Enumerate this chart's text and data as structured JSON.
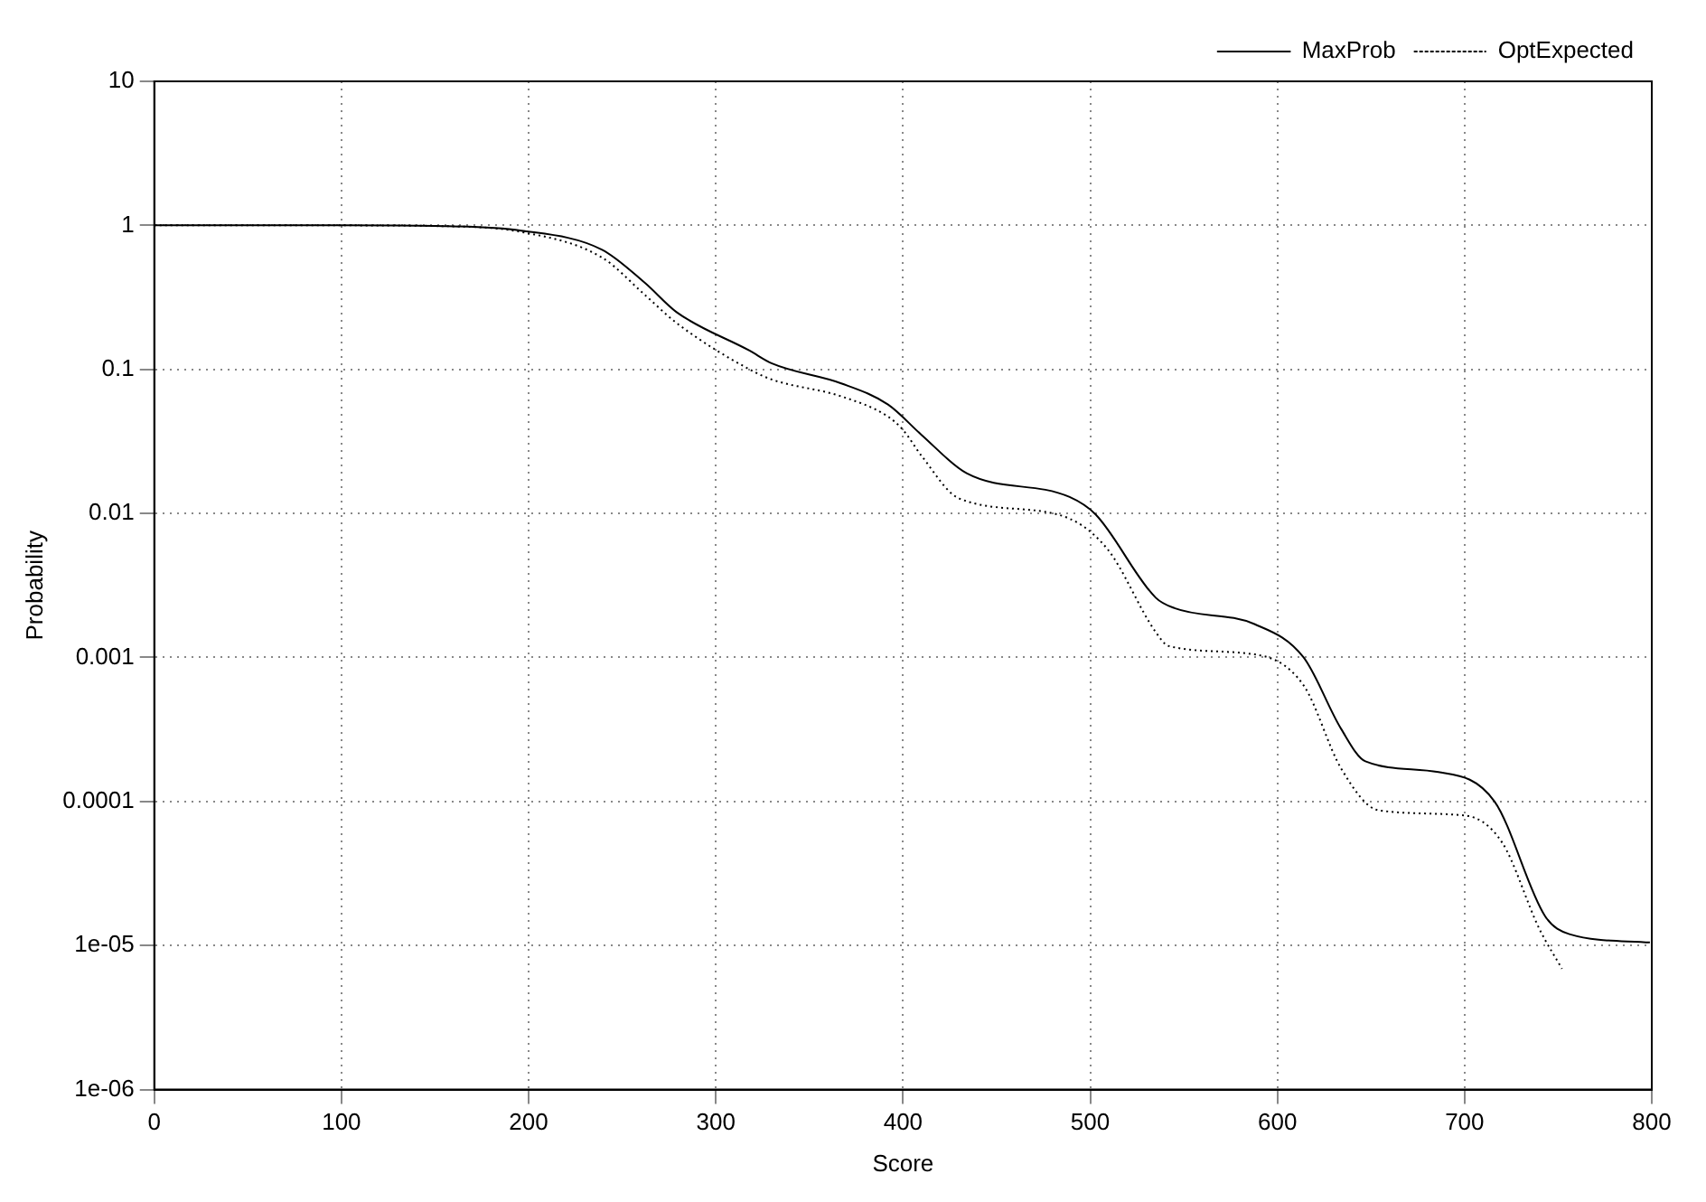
{
  "chart_data": {
    "type": "line",
    "xlabel": "Score",
    "ylabel": "Probability",
    "log": "y",
    "grid": true,
    "legend": "top right",
    "xlim": [
      0,
      800
    ],
    "xticks": [
      0,
      100,
      200,
      300,
      400,
      500,
      600,
      700,
      800
    ],
    "ylim": [
      1e-06,
      10
    ],
    "yticks": [
      {
        "value": 1e-06,
        "label": "1e-06"
      },
      {
        "value": 1e-05,
        "label": "1e-05"
      },
      {
        "value": 0.0001,
        "label": "0.0001"
      },
      {
        "value": 0.001,
        "label": "0.001"
      },
      {
        "value": 0.01,
        "label": "0.01"
      },
      {
        "value": 0.1,
        "label": "0.1"
      },
      {
        "value": 1,
        "label": "1"
      },
      {
        "value": 10,
        "label": "10"
      }
    ],
    "series": [
      {
        "name": "MaxProb",
        "color": "#000000",
        "line_style": "solid",
        "x": [
          0,
          100,
          150,
          196,
          239,
          262,
          279,
          318,
          330,
          367,
          392,
          410,
          434,
          489,
          503,
          535,
          545,
          588,
          614,
          634,
          647,
          686,
          716,
          743,
          756,
          799
        ],
        "values": [
          1,
          1,
          0.99,
          0.92,
          0.68,
          0.4,
          0.25,
          0.135,
          0.11,
          0.08,
          0.057,
          0.035,
          0.019,
          0.013,
          0.0098,
          0.0026,
          0.0022,
          0.0017,
          0.001,
          0.00032,
          0.00019,
          0.00016,
          0.0001,
          1.6e-05,
          1.2e-05,
          1.05e-05
        ]
      },
      {
        "name": "OptExpected",
        "color": "#000000",
        "line_style": "dotted",
        "x": [
          0,
          100,
          150,
          196,
          239,
          262,
          279,
          318,
          330,
          367,
          392,
          400,
          410,
          430,
          483,
          509,
          535,
          542,
          588,
          614,
          634,
          654,
          700,
          720,
          740,
          752
        ],
        "values": [
          1,
          1,
          0.99,
          0.9,
          0.6,
          0.33,
          0.21,
          0.1,
          0.085,
          0.065,
          0.047,
          0.038,
          0.025,
          0.0127,
          0.0098,
          0.0057,
          0.0015,
          0.0012,
          0.00105,
          0.00064,
          0.00017,
          8.7e-05,
          8e-05,
          5.2e-05,
          1.3e-05,
          6.9e-06
        ]
      }
    ]
  }
}
